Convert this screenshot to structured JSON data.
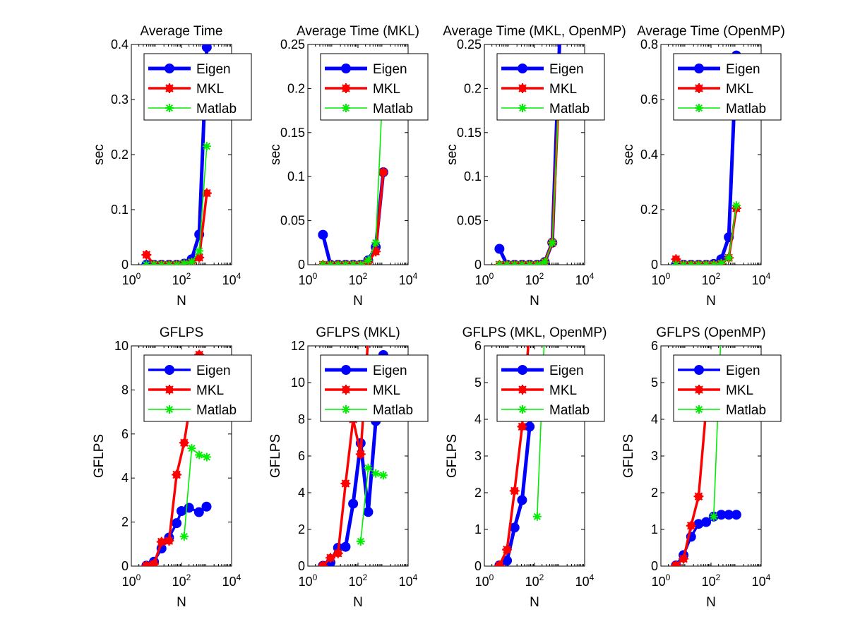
{
  "figure": {
    "background": "#ffffff"
  },
  "chart_data": [
    {
      "type": "line",
      "title": "Average Time",
      "xlabel": "N",
      "ylabel": "sec",
      "xscale": "log",
      "xlim": [
        1,
        10000
      ],
      "ylim": [
        0,
        0.4
      ],
      "xticks": [
        1,
        100,
        10000
      ],
      "yticks": [
        0,
        0.1,
        0.2,
        0.3,
        0.4
      ],
      "ytick_labels": [
        "0",
        "0.1",
        "0.2",
        "0.3",
        "0.4"
      ],
      "legend": {
        "position": "top"
      },
      "series": [
        {
          "name": "Eigen",
          "color": "#0000ff",
          "marker": "circle",
          "width": "thick",
          "x": [
            4,
            8,
            16,
            32,
            64,
            128,
            256,
            512,
            1024
          ],
          "y": [
            0,
            0,
            0,
            0,
            0,
            0.002,
            0.01,
            0.055,
            0.395
          ]
        },
        {
          "name": "MKL",
          "color": "#ff0000",
          "marker": "star",
          "width": "medium",
          "x": [
            4,
            8,
            16,
            32,
            64,
            128,
            256,
            512,
            1024
          ],
          "y": [
            0.018,
            0,
            0,
            0,
            0,
            0.001,
            0.004,
            0.013,
            0.13
          ]
        },
        {
          "name": "Matlab",
          "color": "#00ee00",
          "marker": "asterisk",
          "width": "thin",
          "x": [
            4,
            8,
            16,
            32,
            64,
            128,
            256,
            512,
            1024
          ],
          "y": [
            0,
            0,
            0,
            0,
            0,
            0.002,
            0.005,
            0.025,
            0.215
          ]
        }
      ]
    },
    {
      "type": "line",
      "title": "Average Time (MKL)",
      "xlabel": "N",
      "ylabel": "sec",
      "xscale": "log",
      "xlim": [
        1,
        10000
      ],
      "ylim": [
        0,
        0.25
      ],
      "xticks": [
        1,
        100,
        10000
      ],
      "yticks": [
        0,
        0.05,
        0.1,
        0.15,
        0.2,
        0.25
      ],
      "ytick_labels": [
        "0",
        "0.05",
        "0.1",
        "0.15",
        "0.2",
        "0.25"
      ],
      "legend": {
        "position": "top"
      },
      "series": [
        {
          "name": "Eigen",
          "color": "#0000ff",
          "marker": "circle",
          "width": "thick",
          "x": [
            4,
            8,
            16,
            32,
            64,
            128,
            256,
            512,
            1024
          ],
          "y": [
            0.034,
            0,
            0,
            0,
            0,
            0,
            0.005,
            0.02,
            0.105
          ]
        },
        {
          "name": "MKL",
          "color": "#ff0000",
          "marker": "star",
          "width": "medium",
          "x": [
            4,
            8,
            16,
            32,
            64,
            128,
            256,
            512,
            1024
          ],
          "y": [
            0,
            0,
            0,
            0,
            0,
            0,
            0.003,
            0.015,
            0.105
          ]
        },
        {
          "name": "Matlab",
          "color": "#00ee00",
          "marker": "asterisk",
          "width": "thin",
          "x": [
            4,
            8,
            16,
            32,
            64,
            128,
            256,
            512,
            1024
          ],
          "y": [
            0,
            0,
            0,
            0,
            0,
            0,
            0.005,
            0.025,
            0.215
          ]
        }
      ]
    },
    {
      "type": "line",
      "title": "Average Time (MKL, OpenMP)",
      "xlabel": "N",
      "ylabel": "sec",
      "xscale": "log",
      "xlim": [
        1,
        10000
      ],
      "ylim": [
        0,
        0.25
      ],
      "xticks": [
        1,
        100,
        10000
      ],
      "yticks": [
        0,
        0.05,
        0.1,
        0.15,
        0.2,
        0.25
      ],
      "ytick_labels": [
        "0",
        "0.05",
        "0.1",
        "0.15",
        "0.2",
        "0.25"
      ],
      "legend": {
        "position": "top"
      },
      "series": [
        {
          "name": "Eigen",
          "color": "#0000ff",
          "marker": "circle",
          "width": "thick",
          "x": [
            4,
            8,
            16,
            32,
            64,
            128,
            256,
            512,
            1024
          ],
          "y": [
            0.018,
            0,
            0,
            0,
            0,
            0,
            0.003,
            0.025,
            0.26
          ]
        },
        {
          "name": "MKL",
          "color": "#ff0000",
          "marker": "star",
          "width": "medium",
          "x": [
            4,
            8,
            16,
            32,
            64,
            128,
            256,
            512,
            1024
          ],
          "y": [
            0,
            0,
            0,
            0,
            0,
            0,
            0.003,
            0.025,
            0.215
          ]
        },
        {
          "name": "Matlab",
          "color": "#00ee00",
          "marker": "asterisk",
          "width": "thin",
          "x": [
            4,
            8,
            16,
            32,
            64,
            128,
            256,
            512,
            1024
          ],
          "y": [
            0,
            0,
            0,
            0,
            0,
            0,
            0.003,
            0.025,
            0.215
          ]
        }
      ]
    },
    {
      "type": "line",
      "title": "Average Time (OpenMP)",
      "xlabel": "N",
      "ylabel": "sec",
      "xscale": "log",
      "xlim": [
        1,
        10000
      ],
      "ylim": [
        0,
        0.8
      ],
      "xticks": [
        1,
        100,
        10000
      ],
      "yticks": [
        0,
        0.2,
        0.4,
        0.6,
        0.8
      ],
      "ytick_labels": [
        "0",
        "0.2",
        "0.4",
        "0.6",
        "0.8"
      ],
      "legend": {
        "position": "top"
      },
      "series": [
        {
          "name": "Eigen",
          "color": "#0000ff",
          "marker": "circle",
          "width": "thick",
          "x": [
            4,
            8,
            16,
            32,
            64,
            128,
            256,
            512,
            1024
          ],
          "y": [
            0,
            0,
            0,
            0,
            0,
            0.003,
            0.02,
            0.1,
            0.76
          ]
        },
        {
          "name": "MKL",
          "color": "#ff0000",
          "marker": "star",
          "width": "medium",
          "x": [
            4,
            8,
            16,
            32,
            64,
            128,
            256,
            512,
            1024
          ],
          "y": [
            0.02,
            0,
            0,
            0,
            0,
            0,
            0.004,
            0.025,
            0.205
          ]
        },
        {
          "name": "Matlab",
          "color": "#00ee00",
          "marker": "asterisk",
          "width": "thin",
          "x": [
            4,
            8,
            16,
            32,
            64,
            128,
            256,
            512,
            1024
          ],
          "y": [
            0,
            0,
            0,
            0,
            0,
            0,
            0.005,
            0.025,
            0.215
          ]
        }
      ]
    },
    {
      "type": "line",
      "title": "GFLPS",
      "xlabel": "N",
      "ylabel": "GFLPS",
      "xscale": "log",
      "xlim": [
        1,
        10000
      ],
      "ylim": [
        0,
        10
      ],
      "xticks": [
        1,
        100,
        10000
      ],
      "yticks": [
        0,
        2,
        4,
        6,
        8,
        10
      ],
      "ytick_labels": [
        "0",
        "2",
        "4",
        "6",
        "8",
        "10"
      ],
      "legend": {
        "position": "top"
      },
      "series": [
        {
          "name": "Eigen",
          "color": "#0000ff",
          "marker": "circle",
          "width": "medium",
          "x": [
            4,
            8,
            16,
            32,
            64,
            100,
            200,
            500,
            1000
          ],
          "y": [
            0.02,
            0.2,
            0.8,
            1.3,
            1.95,
            2.5,
            2.65,
            2.45,
            2.7
          ]
        },
        {
          "name": "MKL",
          "color": "#ff0000",
          "marker": "star",
          "width": "medium",
          "x": [
            4,
            8,
            16,
            32,
            64,
            128,
            256,
            512
          ],
          "y": [
            0.02,
            0.1,
            1.1,
            1.15,
            4.15,
            5.6,
            7.8,
            9.6
          ]
        },
        {
          "name": "Matlab",
          "color": "#00ee00",
          "marker": "asterisk",
          "width": "thin",
          "x": [
            128,
            256,
            512,
            1024
          ],
          "y": [
            1.35,
            5.35,
            5.05,
            4.95
          ]
        }
      ]
    },
    {
      "type": "line",
      "title": "GFLPS (MKL)",
      "xlabel": "N",
      "ylabel": "GFLPS",
      "xscale": "log",
      "xlim": [
        1,
        10000
      ],
      "ylim": [
        0,
        12
      ],
      "xticks": [
        1,
        100,
        10000
      ],
      "yticks": [
        0,
        2,
        4,
        6,
        8,
        10,
        12
      ],
      "ytick_labels": [
        "0",
        "2",
        "4",
        "6",
        "8",
        "10",
        "12"
      ],
      "legend": {
        "position": "top"
      },
      "series": [
        {
          "name": "Eigen",
          "color": "#0000ff",
          "marker": "circle",
          "width": "thick",
          "x": [
            4,
            8,
            16,
            32,
            64,
            128,
            256,
            512,
            1024
          ],
          "y": [
            0.02,
            0.2,
            1.0,
            1.05,
            3.4,
            6.7,
            2.95,
            7.9,
            11.5
          ]
        },
        {
          "name": "MKL",
          "color": "#ff0000",
          "marker": "star",
          "width": "medium",
          "x": [
            4,
            8,
            16,
            32,
            64,
            128,
            256
          ],
          "y": [
            0.02,
            0.45,
            0.7,
            4.5,
            8.0,
            6.1,
            12.5
          ]
        },
        {
          "name": "Matlab",
          "color": "#00ee00",
          "marker": "asterisk",
          "width": "thin",
          "x": [
            128,
            256,
            512,
            1024
          ],
          "y": [
            1.35,
            5.35,
            5.05,
            4.95
          ]
        }
      ]
    },
    {
      "type": "line",
      "title": "GFLPS (MKL, OpenMP)",
      "xlabel": "N",
      "ylabel": "GFLPS",
      "xscale": "log",
      "xlim": [
        1,
        10000
      ],
      "ylim": [
        0,
        6
      ],
      "xticks": [
        1,
        100,
        10000
      ],
      "yticks": [
        0,
        1,
        2,
        3,
        4,
        5,
        6
      ],
      "ytick_labels": [
        "0",
        "1",
        "2",
        "3",
        "4",
        "5",
        "6"
      ],
      "legend": {
        "position": "top"
      },
      "series": [
        {
          "name": "Eigen",
          "color": "#0000ff",
          "marker": "circle",
          "width": "thick",
          "x": [
            4,
            8,
            16,
            32,
            64,
            100
          ],
          "y": [
            0.02,
            0.15,
            1.05,
            1.8,
            3.8,
            5.5
          ]
        },
        {
          "name": "MKL",
          "color": "#ff0000",
          "marker": "star",
          "width": "medium",
          "x": [
            4,
            8,
            16,
            32,
            64
          ],
          "y": [
            0.02,
            0.45,
            2.05,
            3.8,
            6.5
          ]
        },
        {
          "name": "Matlab",
          "color": "#00ee00",
          "marker": "asterisk",
          "width": "thin",
          "x": [
            128,
            256
          ],
          "y": [
            1.35,
            6.5
          ]
        }
      ]
    },
    {
      "type": "line",
      "title": "GFLPS (OpenMP)",
      "xlabel": "N",
      "ylabel": "GFLPS",
      "xscale": "log",
      "xlim": [
        1,
        10000
      ],
      "ylim": [
        0,
        6
      ],
      "xticks": [
        1,
        100,
        10000
      ],
      "yticks": [
        0,
        1,
        2,
        3,
        4,
        5,
        6
      ],
      "ytick_labels": [
        "0",
        "1",
        "2",
        "3",
        "4",
        "5",
        "6"
      ],
      "legend": {
        "position": "top"
      },
      "series": [
        {
          "name": "Eigen",
          "color": "#0000ff",
          "marker": "circle",
          "width": "medium",
          "x": [
            4,
            8,
            16,
            32,
            64,
            128,
            256,
            512,
            1024
          ],
          "y": [
            0.02,
            0.3,
            0.8,
            1.15,
            1.2,
            1.35,
            1.4,
            1.4,
            1.4
          ]
        },
        {
          "name": "MKL",
          "color": "#ff0000",
          "marker": "star",
          "width": "medium",
          "x": [
            4,
            8,
            16,
            32,
            64
          ],
          "y": [
            0.02,
            0.2,
            1.1,
            1.9,
            4.3
          ]
        },
        {
          "name": "Matlab",
          "color": "#00ee00",
          "marker": "asterisk",
          "width": "thin",
          "x": [
            128,
            256
          ],
          "y": [
            1.35,
            6.5
          ]
        }
      ]
    }
  ]
}
